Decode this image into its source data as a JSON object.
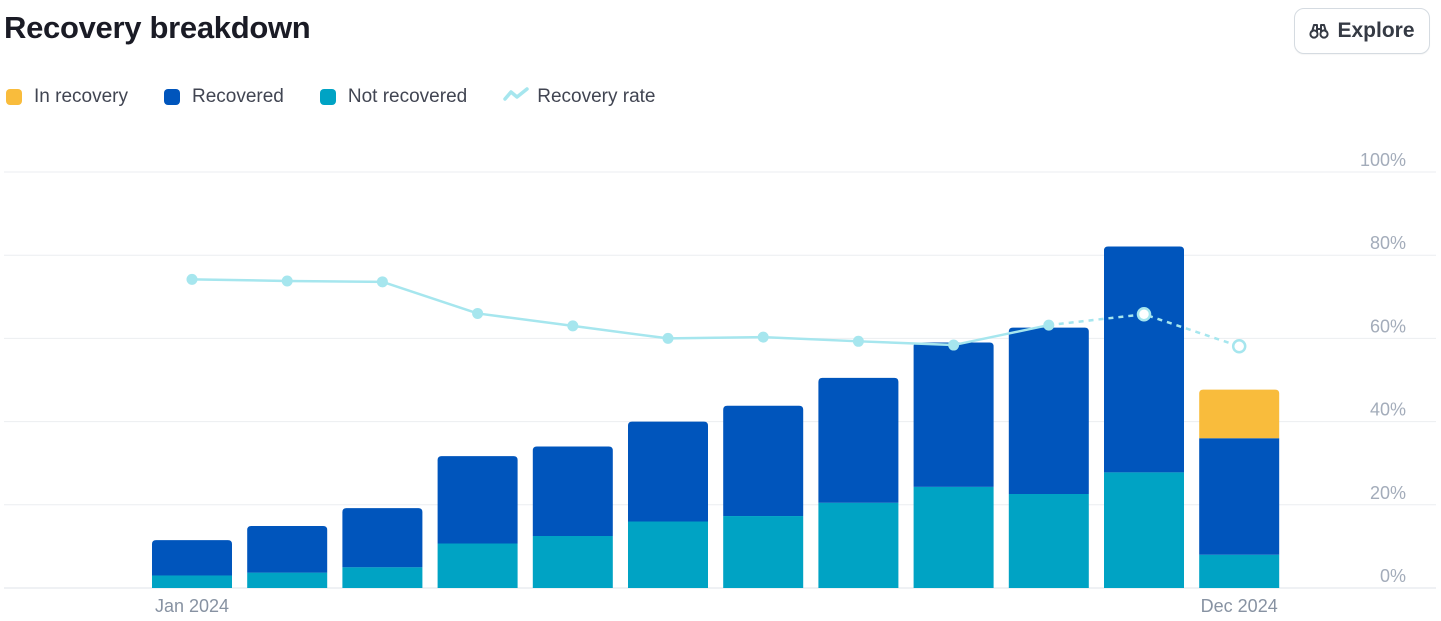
{
  "header": {
    "title": "Recovery breakdown",
    "explore_label": "Explore",
    "explore_icon": "binoculars-icon"
  },
  "legend": [
    {
      "label": "In recovery",
      "color": "#f9bc3c",
      "kind": "box"
    },
    {
      "label": "Recovered",
      "color": "#0055bc",
      "kind": "box"
    },
    {
      "label": "Not recovered",
      "color": "#00a3c4",
      "kind": "box"
    },
    {
      "label": "Recovery rate",
      "color": "#a6e6ee",
      "kind": "line"
    }
  ],
  "chart_data": {
    "type": "bar",
    "stacked": true,
    "months": 12,
    "x_tick_labels": [
      "Jan 2024",
      "Dec 2024"
    ],
    "y_tick_labels": [
      "0%",
      "20%",
      "40%",
      "60%",
      "80%",
      "100%"
    ],
    "y_range": [
      0,
      100
    ],
    "grid": true,
    "legend_position": "top-left",
    "series": [
      {
        "name": "Not recovered",
        "color": "#00a3c4",
        "values": [
          3,
          3.7,
          5,
          10.7,
          12.5,
          16,
          17.3,
          20.5,
          24.3,
          22.6,
          27.8,
          8
        ]
      },
      {
        "name": "Recovered",
        "color": "#0055bc",
        "values": [
          8.5,
          11.2,
          14.2,
          21,
          21.5,
          24,
          26.5,
          30,
          34.7,
          40,
          54.3,
          28
        ]
      },
      {
        "name": "In recovery",
        "color": "#f9bc3c",
        "values": [
          0,
          0,
          0,
          0,
          0,
          0,
          0,
          0,
          0,
          0,
          0,
          11.7
        ]
      }
    ],
    "line": {
      "name": "Recovery rate",
      "color": "#a6e6ee",
      "values": [
        74.2,
        73.8,
        73.6,
        66,
        63,
        60,
        60.3,
        59.3,
        58.4,
        63.2,
        65.8,
        58.1
      ],
      "dashed_from_index": 9,
      "hollow_points": [
        10,
        11
      ]
    }
  }
}
